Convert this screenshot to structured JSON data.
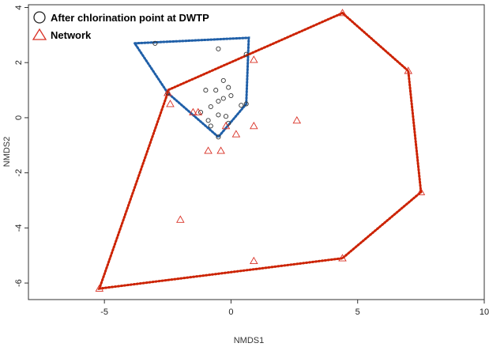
{
  "chart_data": {
    "type": "scatter",
    "xlabel": "NMDS1",
    "ylabel": "NMDS2",
    "xlim": [
      -8,
      10
    ],
    "ylim": [
      -6.6,
      4.1
    ],
    "xticks": [
      -5,
      0,
      5,
      10
    ],
    "yticks": [
      -6,
      -4,
      -2,
      0,
      2,
      4
    ],
    "grid": false,
    "legend_position": "top-left",
    "series": [
      {
        "name": "After chlorination point at DWTP",
        "marker": "circle",
        "color": "#333333",
        "hull_color": "#1f5fa8",
        "hull": [
          [
            -3.8,
            2.7
          ],
          [
            0.7,
            2.9
          ],
          [
            0.6,
            0.5
          ],
          [
            -0.5,
            -0.7
          ],
          [
            -2.5,
            0.9
          ]
        ],
        "points": [
          [
            -3.0,
            2.7
          ],
          [
            -0.5,
            2.5
          ],
          [
            0.6,
            2.3
          ],
          [
            -1.0,
            1.0
          ],
          [
            -0.6,
            1.0
          ],
          [
            -0.3,
            1.35
          ],
          [
            -0.1,
            1.1
          ],
          [
            0.0,
            0.8
          ],
          [
            -0.3,
            0.7
          ],
          [
            -0.5,
            0.6
          ],
          [
            -0.8,
            0.4
          ],
          [
            0.4,
            0.45
          ],
          [
            0.6,
            0.5
          ],
          [
            -0.5,
            0.1
          ],
          [
            -0.2,
            0.05
          ],
          [
            -0.9,
            -0.1
          ],
          [
            -0.8,
            -0.3
          ],
          [
            -0.1,
            -0.2
          ],
          [
            -0.5,
            -0.7
          ],
          [
            -2.5,
            0.9
          ],
          [
            -1.2,
            0.2
          ]
        ]
      },
      {
        "name": "Network",
        "marker": "triangle",
        "color": "#d93025",
        "hull_color": "#cc2200",
        "hull": [
          [
            4.4,
            3.8
          ],
          [
            7.0,
            1.7
          ],
          [
            7.5,
            -2.7
          ],
          [
            4.4,
            -5.1
          ],
          [
            -5.2,
            -6.2
          ],
          [
            -2.5,
            0.9
          ],
          [
            -2.5,
            1.0
          ]
        ],
        "points": [
          [
            4.4,
            3.8
          ],
          [
            7.0,
            1.7
          ],
          [
            7.5,
            -2.7
          ],
          [
            4.4,
            -5.1
          ],
          [
            -5.2,
            -6.2
          ],
          [
            -2.5,
            0.9
          ],
          [
            -2.4,
            0.5
          ],
          [
            -1.5,
            0.2
          ],
          [
            -1.3,
            0.2
          ],
          [
            0.9,
            2.1
          ],
          [
            0.9,
            -0.3
          ],
          [
            2.6,
            -0.1
          ],
          [
            0.2,
            -0.6
          ],
          [
            -0.2,
            -0.3
          ],
          [
            -0.9,
            -1.2
          ],
          [
            -0.4,
            -1.2
          ],
          [
            -2.0,
            -3.7
          ],
          [
            0.9,
            -5.2
          ]
        ]
      }
    ]
  }
}
